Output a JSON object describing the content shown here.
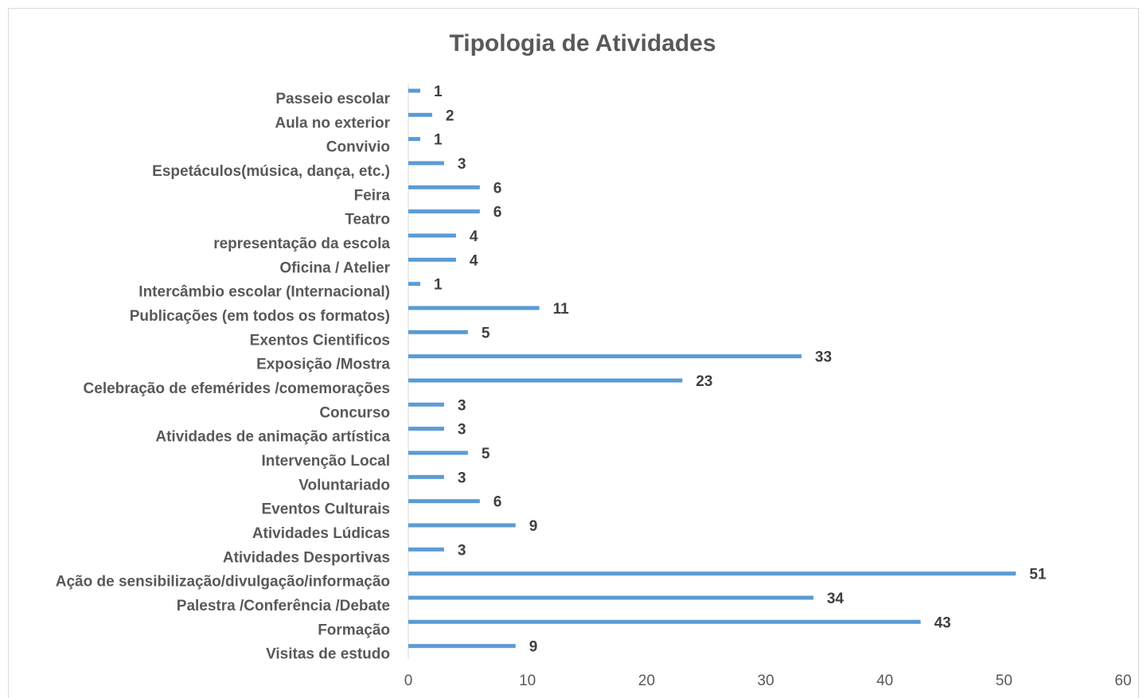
{
  "chart_data": {
    "type": "hbar",
    "title": "Tipologia de Atividades",
    "categories": [
      "Passeio escolar",
      "Aula no exterior",
      "Convivio",
      "Espetáculos(música, dança, etc.)",
      "Feira",
      "Teatro",
      "representação da escola",
      "Oficina / Atelier",
      "Intercâmbio escolar (Internacional)",
      "Publicações (em todos os formatos)",
      "Exentos Cientificos",
      "Exposição /Mostra",
      "Celebração de efemérides /comemorações",
      "Concurso",
      "Atividades de animação artística",
      "Intervenção Local",
      "Voluntariado",
      "Eventos Culturais",
      "Atividades Lúdicas",
      "Atividades Desportivas",
      "Ação de sensibilização/divulgação/informação",
      "Palestra /Conferência /Debate",
      "Formação",
      "Visitas de estudo"
    ],
    "values": [
      1,
      2,
      1,
      3,
      6,
      6,
      4,
      4,
      1,
      11,
      5,
      33,
      23,
      3,
      3,
      5,
      3,
      6,
      9,
      3,
      51,
      34,
      43,
      9
    ],
    "color": "#5b9bd5",
    "xlim": [
      0,
      60
    ],
    "xticks": [
      0,
      10,
      20,
      30,
      40,
      50,
      60
    ],
    "grid": false
  }
}
